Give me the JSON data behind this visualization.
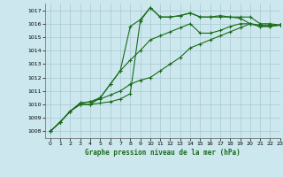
{
  "title": "Graphe pression niveau de la mer (hPa)",
  "background_color": "#cce8ee",
  "line_color": "#1a6b1a",
  "xlim": [
    -0.5,
    23
  ],
  "ylim": [
    1007.5,
    1017.5
  ],
  "xlabel_ticks": [
    0,
    1,
    2,
    3,
    4,
    5,
    6,
    7,
    8,
    9,
    10,
    11,
    12,
    13,
    14,
    15,
    16,
    17,
    18,
    19,
    20,
    21,
    22,
    23
  ],
  "ylabel_ticks": [
    1008,
    1009,
    1010,
    1011,
    1012,
    1013,
    1014,
    1015,
    1016,
    1017
  ],
  "series1_x": [
    0,
    1,
    2,
    3,
    4,
    5,
    6,
    7,
    8,
    9,
    10,
    11,
    12,
    13,
    14,
    15,
    16,
    17,
    18,
    19,
    20,
    21,
    22,
    23
  ],
  "series1_y": [
    1008.0,
    1008.7,
    1009.5,
    1010.0,
    1010.0,
    1010.1,
    1010.2,
    1010.4,
    1010.8,
    1016.2,
    1017.2,
    1016.5,
    1016.5,
    1016.6,
    1016.8,
    1016.5,
    1016.5,
    1016.6,
    1016.5,
    1016.5,
    1016.5,
    1016.0,
    1016.0,
    1015.9
  ],
  "series2_x": [
    0,
    1,
    2,
    3,
    4,
    5,
    6,
    7,
    8,
    9,
    10,
    11,
    12,
    13,
    14,
    15,
    16,
    17,
    18,
    19,
    20,
    21,
    22,
    23
  ],
  "series2_y": [
    1008.0,
    1008.7,
    1009.5,
    1010.0,
    1010.0,
    1010.5,
    1011.5,
    1012.5,
    1015.8,
    1016.3,
    1017.2,
    1016.5,
    1016.5,
    1016.6,
    1016.8,
    1016.5,
    1016.5,
    1016.5,
    1016.5,
    1016.4,
    1016.0,
    1015.9,
    1015.9,
    1015.9
  ],
  "series3_x": [
    0,
    1,
    2,
    3,
    4,
    5,
    6,
    7,
    8,
    9,
    10,
    11,
    12,
    13,
    14,
    15,
    16,
    17,
    18,
    19,
    20,
    21,
    22,
    23
  ],
  "series3_y": [
    1008.0,
    1008.7,
    1009.5,
    1010.1,
    1010.2,
    1010.5,
    1011.5,
    1012.5,
    1013.3,
    1014.0,
    1014.8,
    1015.1,
    1015.4,
    1015.7,
    1016.0,
    1015.3,
    1015.3,
    1015.5,
    1015.8,
    1016.0,
    1016.0,
    1015.8,
    1015.8,
    1015.9
  ],
  "series4_x": [
    0,
    1,
    2,
    3,
    4,
    5,
    6,
    7,
    8,
    9,
    10,
    11,
    12,
    13,
    14,
    15,
    16,
    17,
    18,
    19,
    20,
    21,
    22,
    23
  ],
  "series4_y": [
    1008.0,
    1008.7,
    1009.5,
    1010.1,
    1010.2,
    1010.4,
    1010.7,
    1011.0,
    1011.5,
    1011.8,
    1012.0,
    1012.5,
    1013.0,
    1013.5,
    1014.2,
    1014.5,
    1014.8,
    1015.1,
    1015.4,
    1015.7,
    1016.0,
    1015.8,
    1015.8,
    1015.9
  ]
}
